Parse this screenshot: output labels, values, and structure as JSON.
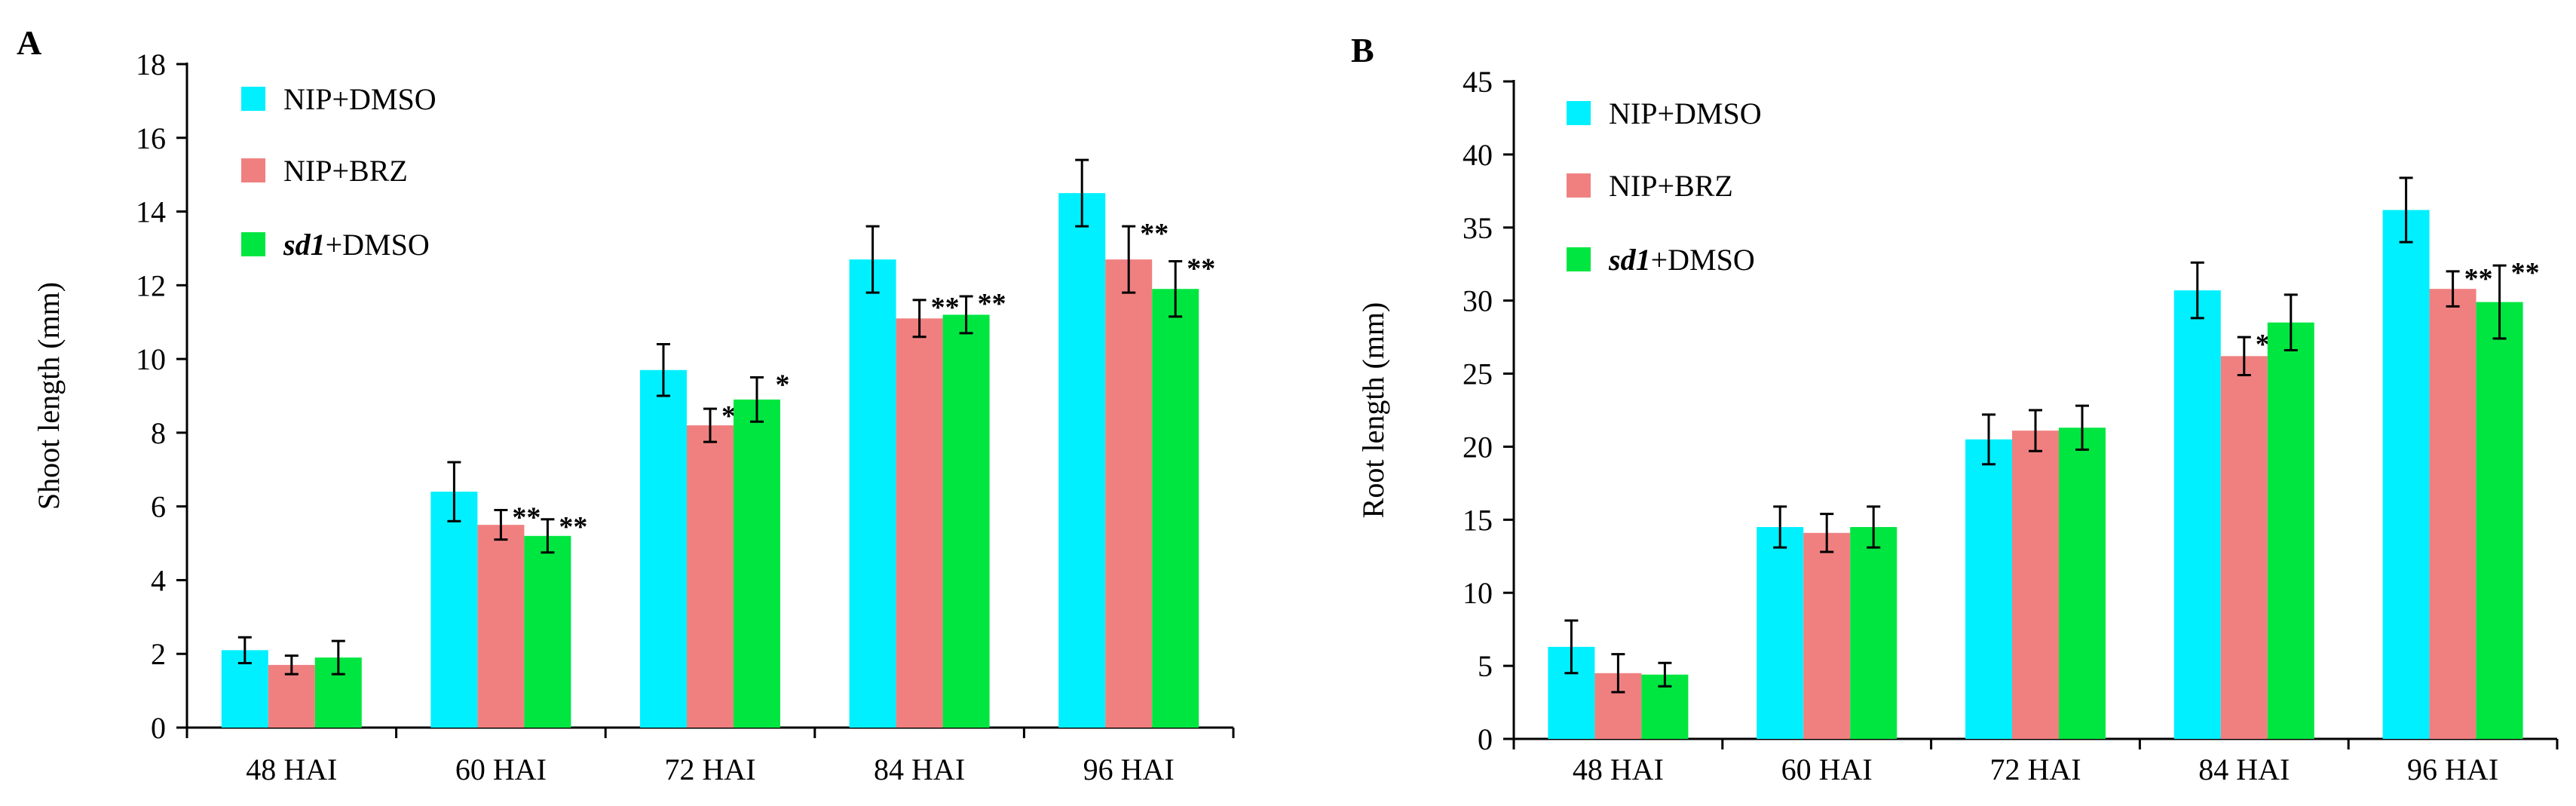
{
  "chart_data": [
    {
      "type": "bar",
      "panel_label": "A",
      "ylabel": "Shoot length (mm)",
      "ylim": [
        0,
        18
      ],
      "yticks": [
        0,
        2,
        4,
        6,
        8,
        10,
        12,
        14,
        16,
        18
      ],
      "categories": [
        "48 HAI",
        "60 HAI",
        "72 HAI",
        "84 HAI",
        "96 HAI"
      ],
      "legend_position": "top-left",
      "series": [
        {
          "name": "NIP+DMSO",
          "name_prefix": "",
          "name_italic": "",
          "name_suffix": "NIP+DMSO",
          "color": "#00F0FF",
          "values": [
            2.1,
            6.4,
            9.7,
            12.7,
            14.5
          ],
          "errors": [
            0.35,
            0.8,
            0.7,
            0.9,
            0.9
          ],
          "sig": [
            "",
            "",
            "",
            "",
            ""
          ]
        },
        {
          "name": "NIP+BRZ",
          "name_prefix": "",
          "name_italic": "",
          "name_suffix": "NIP+BRZ",
          "color": "#F08080",
          "values": [
            1.7,
            5.5,
            8.2,
            11.1,
            12.7
          ],
          "errors": [
            0.25,
            0.4,
            0.45,
            0.5,
            0.9
          ],
          "sig": [
            "",
            "**",
            "**",
            "**",
            "**"
          ]
        },
        {
          "name": "sd1+DMSO",
          "name_prefix": "",
          "name_italic": "sd1",
          "name_suffix": "+DMSO",
          "color": "#00E640",
          "values": [
            1.9,
            5.2,
            8.9,
            11.2,
            11.9
          ],
          "errors": [
            0.45,
            0.45,
            0.6,
            0.5,
            0.75
          ],
          "sig": [
            "",
            "**",
            "*",
            "**",
            "**"
          ]
        }
      ]
    },
    {
      "type": "bar",
      "panel_label": "B",
      "ylabel": "Root length (mm)",
      "ylim": [
        0,
        45
      ],
      "yticks": [
        0,
        5,
        10,
        15,
        20,
        25,
        30,
        35,
        40,
        45
      ],
      "categories": [
        "48 HAI",
        "60 HAI",
        "72 HAI",
        "84 HAI",
        "96 HAI"
      ],
      "legend_position": "top-left",
      "series": [
        {
          "name": "NIP+DMSO",
          "name_prefix": "",
          "name_italic": "",
          "name_suffix": "NIP+DMSO",
          "color": "#00F0FF",
          "values": [
            6.3,
            14.5,
            20.5,
            30.7,
            36.2
          ],
          "errors": [
            1.8,
            1.4,
            1.7,
            1.9,
            2.2
          ],
          "sig": [
            "",
            "",
            "",
            "",
            ""
          ]
        },
        {
          "name": "NIP+BRZ",
          "name_prefix": "",
          "name_italic": "",
          "name_suffix": "NIP+BRZ",
          "color": "#F08080",
          "values": [
            4.5,
            14.1,
            21.1,
            26.2,
            30.8
          ],
          "errors": [
            1.3,
            1.3,
            1.4,
            1.3,
            1.2
          ],
          "sig": [
            "",
            "",
            "",
            "**",
            "**"
          ]
        },
        {
          "name": "sd1+DMSO",
          "name_prefix": "",
          "name_italic": "sd1",
          "name_suffix": "+DMSO",
          "color": "#00E640",
          "values": [
            4.4,
            14.5,
            21.3,
            28.5,
            29.9
          ],
          "errors": [
            0.8,
            1.4,
            1.5,
            1.9,
            2.5
          ],
          "sig": [
            "",
            "",
            "",
            "",
            "**"
          ]
        }
      ]
    }
  ]
}
